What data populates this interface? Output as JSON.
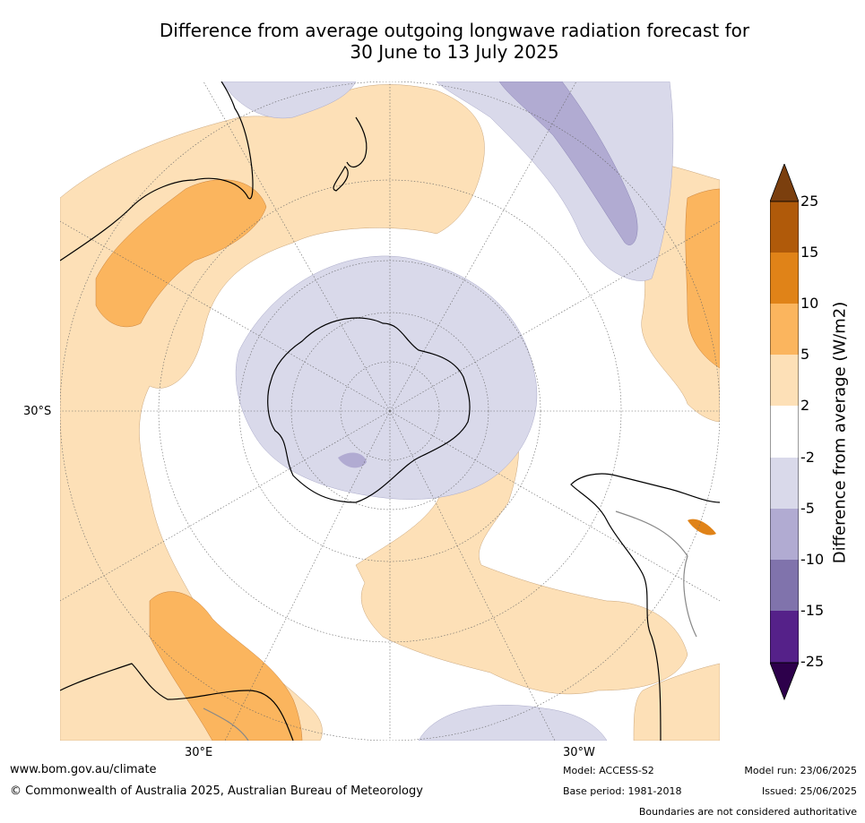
{
  "title_line1": "Difference from average outgoing longwave radiation forecast for",
  "title_line2": "30 June to 13 July 2025",
  "map": {
    "projection": "south-polar stereographic",
    "lat_label": "30°S",
    "lon_label_left": "30°E",
    "lon_label_right": "30°W"
  },
  "colorbar": {
    "label": "Difference from average (W/m2)",
    "ticks": [
      "25",
      "15",
      "10",
      "5",
      "2",
      "-2",
      "-5",
      "-10",
      "-15",
      "-25"
    ],
    "colors": {
      "over_25": "#7b3f0e",
      "c15_25": "#b05a0a",
      "c10_15": "#e08318",
      "c5_10": "#fbb55e",
      "c2_5": "#fde0b7",
      "neutral": "#ffffff",
      "cm2_m5": "#d9d9ea",
      "cm5_m10": "#b1abd2",
      "cm10_m15": "#8073ac",
      "cm15_m25": "#552189",
      "under_m25": "#2d004b"
    }
  },
  "footer": {
    "website": "www.bom.gov.au/climate",
    "copyright": "© Commonwealth of Australia 2025, Australian Bureau of Meteorology",
    "model": "Model: ACCESS-S2",
    "base_period": "Base period: 1981-2018",
    "model_run": "Model run: 23/06/2025",
    "issued": "Issued: 25/06/2025",
    "boundaries": "Boundaries are not considered authoritative"
  }
}
